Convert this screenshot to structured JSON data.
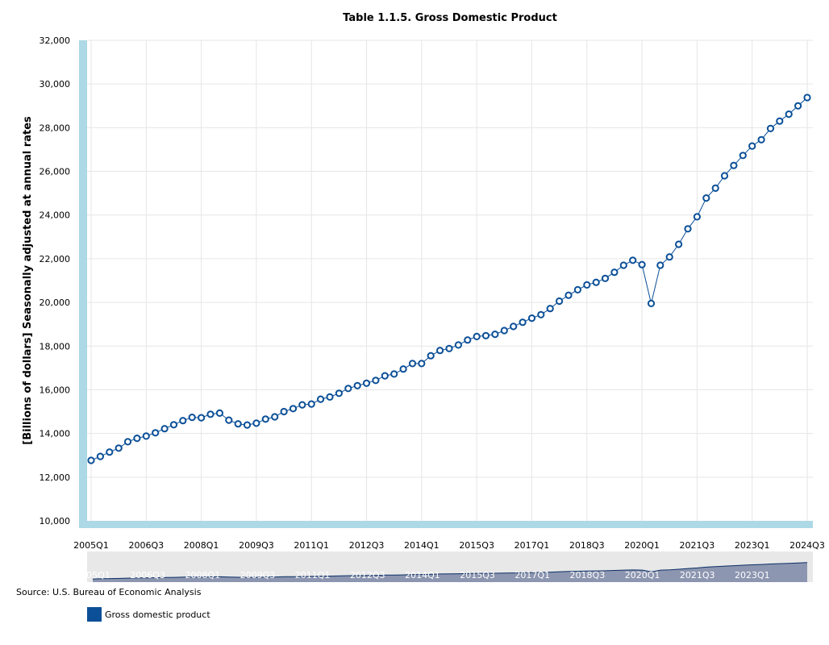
{
  "source": "Source: U.S. Bureau of Economic Analysis",
  "colors": {
    "series": "#0b4f97",
    "axis_band": "#add8e6",
    "grid": "#e6e6e6",
    "navigator_bg": "#e8e8e8",
    "navigator_fill": "#8d96b0"
  },
  "chart_data": {
    "type": "line",
    "title": "Table 1.1.5. Gross Domestic Product",
    "xlabel": "",
    "ylabel": "[Billions of dollars] Seasonally adjusted at annual rates",
    "ylim": [
      10000,
      32000
    ],
    "y_ticks": [
      "10,000",
      "12,000",
      "14,000",
      "16,000",
      "18,000",
      "20,000",
      "22,000",
      "24,000",
      "26,000",
      "28,000",
      "30,000",
      "32,000"
    ],
    "x_ticks": [
      "2005Q1",
      "2006Q3",
      "2008Q1",
      "2009Q3",
      "2011Q1",
      "2012Q3",
      "2014Q1",
      "2015Q3",
      "2017Q1",
      "2018Q3",
      "2020Q1",
      "2021Q3",
      "2023Q1",
      "2024Q3"
    ],
    "navigator_ticks": [
      "2005Q1",
      "2006Q3",
      "2008Q1",
      "2009Q3",
      "2011Q1",
      "2012Q3",
      "2014Q1",
      "2015Q3",
      "2017Q1",
      "2018Q3",
      "2020Q1",
      "2021Q3",
      "2023Q1"
    ],
    "legend": [
      "Gross domestic product"
    ],
    "series": [
      {
        "name": "Gross domestic product",
        "start": "2005Q1",
        "values": [
          12770,
          12950,
          13150,
          13330,
          13620,
          13780,
          13880,
          14030,
          14220,
          14400,
          14590,
          14740,
          14720,
          14880,
          14930,
          14610,
          14440,
          14390,
          14470,
          14660,
          14760,
          15000,
          15140,
          15310,
          15350,
          15570,
          15670,
          15840,
          16060,
          16190,
          16300,
          16430,
          16640,
          16720,
          16950,
          17200,
          17200,
          17560,
          17800,
          17890,
          18050,
          18280,
          18440,
          18480,
          18540,
          18710,
          18900,
          19090,
          19280,
          19440,
          19720,
          20060,
          20330,
          20580,
          20800,
          20920,
          21100,
          21380,
          21700,
          21930,
          21730,
          19950,
          21700,
          22080,
          22660,
          23370,
          23920,
          24780,
          25230,
          25800,
          26270,
          26730,
          27160,
          27450,
          27960,
          28300,
          28620,
          29000,
          29380
        ]
      }
    ]
  }
}
